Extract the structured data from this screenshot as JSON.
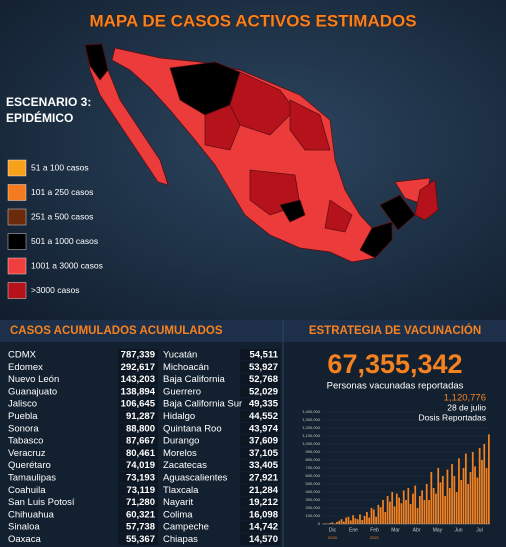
{
  "header": {
    "title": "MAPA DE CASOS ACTIVOS ESTIMADOS",
    "scenario": [
      "ESCENARIO 3:",
      "EPIDÉMICO"
    ]
  },
  "legend": {
    "items": [
      {
        "label": "51 a 100 casos",
        "color": "#f7a21d"
      },
      {
        "label": "101 a 250 casos",
        "color": "#f47b20"
      },
      {
        "label": "251 a 500 casos",
        "color": "#6b2a0c"
      },
      {
        "label": "501 a 1000 casos",
        "color": "#000000"
      },
      {
        "label": "1001 a 3000 casos",
        "color": "#ef3e3e"
      },
      {
        "label": ">3000 casos",
        "color": "#b5121b"
      }
    ]
  },
  "table": {
    "title": "CASOS ACUMULADOS ACUMULADOS",
    "rows": [
      [
        "CDMX",
        "787,339",
        "Yucatán",
        "54,511"
      ],
      [
        "Edomex",
        "292,617",
        "Michoacán",
        "53,927"
      ],
      [
        "Nuevo León",
        "143,203",
        "Baja California",
        "52,768"
      ],
      [
        "Guanajuato",
        "138,894",
        "Guerrero",
        "52,029"
      ],
      [
        "Jalisco",
        "106,645",
        "Baja California Sur",
        "49,335"
      ],
      [
        "Puebla",
        "91,287",
        "Hidalgo",
        "44,552"
      ],
      [
        "Sonora",
        "88,800",
        "Quintana Roo",
        "43,974"
      ],
      [
        "Tabasco",
        "87,667",
        "Durango",
        "37,609"
      ],
      [
        "Veracruz",
        "80,461",
        "Morelos",
        "37,105"
      ],
      [
        "Querétaro",
        "74,019",
        "Zacatecas",
        "33,405"
      ],
      [
        "Tamaulipas",
        "73,193",
        "Aguascalientes",
        "27,921"
      ],
      [
        "Coahuila",
        "73,119",
        "Tlaxcala",
        "21,284"
      ],
      [
        "San Luis Potosí",
        "71,280",
        "Nayarit",
        "19,212"
      ],
      [
        "Chihuahua",
        "60,321",
        "Colima",
        "16,098"
      ],
      [
        "Sinaloa",
        "57,738",
        "Campeche",
        "14,742"
      ],
      [
        "Oaxaca",
        "55,367",
        "Chiapas",
        "14,570"
      ]
    ]
  },
  "vaccination": {
    "title": "ESTRATEGIA DE VACUNACIÓN",
    "total": "67,355,342",
    "subtitle": "Personas vacunadas reportadas"
  },
  "chart_data": {
    "type": "bar",
    "annotation": [
      "1,120,776",
      "28 de julio",
      "Dosis Reportadas"
    ],
    "month_labels": [
      "Dic",
      "Ene",
      "Feb",
      "Mar",
      "Abr",
      "May",
      "Jun",
      "Jul"
    ],
    "year_labels": [
      "2020",
      "2021"
    ],
    "color": "#f58220",
    "values": [
      3000,
      8000,
      2000,
      12000,
      20000,
      5000,
      25000,
      40000,
      60000,
      30000,
      80000,
      90000,
      45000,
      110000,
      70000,
      60000,
      120000,
      50000,
      100000,
      150000,
      80000,
      200000,
      180000,
      90000,
      240000,
      210000,
      300000,
      150000,
      350000,
      280000,
      400000,
      220000,
      380000,
      330000,
      260000,
      420000,
      300000,
      450000,
      250000,
      380000,
      480000,
      200000,
      350000,
      420000,
      300000,
      500000,
      300000,
      650000,
      450000,
      380000,
      700000,
      520000,
      600000,
      350000,
      680000,
      450000,
      750000,
      600000,
      400000,
      820000,
      550000,
      700000,
      880000,
      500000,
      650000,
      900000,
      720000,
      580000,
      950000,
      800000,
      1000000,
      700000,
      1120776
    ],
    "ylim": [
      0,
      1400000
    ],
    "yticks": [
      0,
      {
        "value": 100000,
        "label": "100,000"
      },
      {
        "value": 200000,
        "label": "200,000"
      },
      {
        "value": 300000,
        "label": "300,000"
      },
      {
        "value": 400000,
        "label": "400,000"
      },
      {
        "value": 500000,
        "label": "500,000"
      },
      {
        "value": 600000,
        "label": "600,000"
      },
      {
        "value": 700000,
        "label": "700,000"
      },
      {
        "value": 800000,
        "label": "800,000"
      },
      {
        "value": 900000,
        "label": "900,000"
      },
      {
        "value": 1000000,
        "label": "1,000,000"
      },
      {
        "value": 1100000,
        "label": "1,100,000"
      },
      {
        "value": 1200000,
        "label": "1,200,000"
      },
      {
        "value": 1300000,
        "label": "1,300,000"
      },
      {
        "value": 1400000,
        "label": "1,400,000"
      }
    ]
  }
}
